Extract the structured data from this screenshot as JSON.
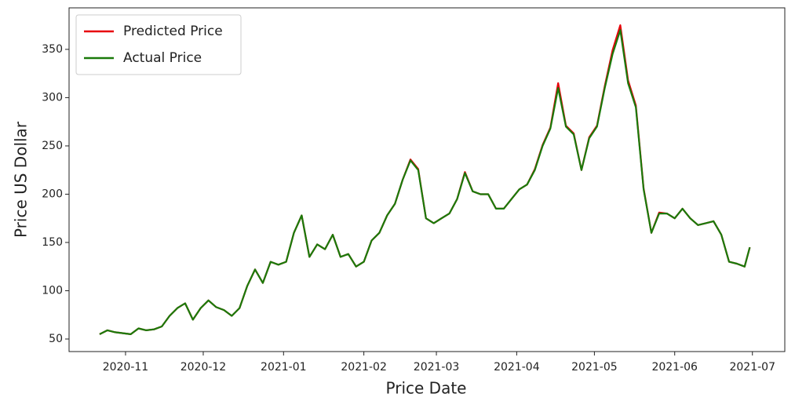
{
  "chart_data": {
    "type": "line",
    "x_label": "Price Date",
    "y_label": "Price US Dollar",
    "x": [
      21,
      24,
      27,
      30,
      33,
      36,
      39,
      42,
      45,
      48,
      51,
      54,
      57,
      60,
      63,
      66,
      69,
      72,
      75,
      78,
      81,
      84,
      87,
      90,
      93,
      96,
      99,
      102,
      105,
      108,
      111,
      114,
      117,
      120,
      123,
      126,
      129,
      132,
      135,
      138,
      141,
      144,
      147,
      150,
      153,
      156,
      159,
      162,
      165,
      168,
      171,
      174,
      177,
      180,
      183,
      186,
      189,
      192,
      195,
      198,
      201,
      204,
      207,
      210,
      213,
      216,
      219,
      222,
      225,
      228,
      231,
      234,
      237,
      240,
      243,
      246,
      249,
      252,
      255,
      258,
      261,
      264,
      267,
      270,
      272
    ],
    "series": [
      {
        "name": "Predicted Price",
        "color": "#e8000b",
        "values": [
          55,
          59,
          57,
          56,
          55,
          61,
          59,
          60,
          63,
          74,
          82,
          87,
          70,
          82,
          90,
          83,
          80,
          74,
          82,
          105,
          122,
          108,
          130,
          127,
          130,
          160,
          178,
          135,
          148,
          143,
          158,
          135,
          138,
          125,
          130,
          152,
          160,
          178,
          190,
          215,
          236,
          226,
          175,
          170,
          175,
          180,
          195,
          223,
          203,
          200,
          200,
          185,
          185,
          195,
          205,
          210,
          226,
          251,
          269,
          315,
          271,
          263,
          225,
          259,
          271,
          312,
          349,
          375,
          318,
          292,
          206,
          160,
          181,
          180,
          175,
          185,
          175,
          168,
          170,
          172,
          158,
          130,
          128,
          125,
          145
        ]
      },
      {
        "name": "Actual Price",
        "color": "#1a7a0a",
        "values": [
          55,
          59,
          57,
          56,
          55,
          61,
          59,
          60,
          63,
          74,
          82,
          87,
          70,
          82,
          90,
          83,
          80,
          74,
          82,
          105,
          122,
          108,
          130,
          127,
          130,
          160,
          178,
          135,
          148,
          143,
          158,
          135,
          138,
          125,
          130,
          152,
          160,
          178,
          190,
          215,
          235,
          225,
          175,
          170,
          175,
          180,
          195,
          222,
          203,
          200,
          200,
          185,
          185,
          195,
          205,
          210,
          225,
          250,
          268,
          310,
          270,
          262,
          225,
          258,
          270,
          310,
          345,
          370,
          315,
          290,
          205,
          160,
          180,
          180,
          175,
          185,
          175,
          168,
          170,
          172,
          158,
          130,
          128,
          125,
          145
        ]
      }
    ],
    "xlim": [
      9.2,
      285.5
    ],
    "xticks": [
      {
        "value": 31,
        "label": "2020-11"
      },
      {
        "value": 61,
        "label": "2020-12"
      },
      {
        "value": 92,
        "label": "2021-01"
      },
      {
        "value": 123,
        "label": "2021-02"
      },
      {
        "value": 151,
        "label": "2021-03"
      },
      {
        "value": 182,
        "label": "2021-04"
      },
      {
        "value": 212,
        "label": "2021-05"
      },
      {
        "value": 243,
        "label": "2021-06"
      },
      {
        "value": 273,
        "label": "2021-07"
      }
    ],
    "ylim": [
      37,
      393
    ],
    "yticks": [
      50,
      100,
      150,
      200,
      250,
      300,
      350
    ],
    "grid": false,
    "legend": "upper left"
  }
}
